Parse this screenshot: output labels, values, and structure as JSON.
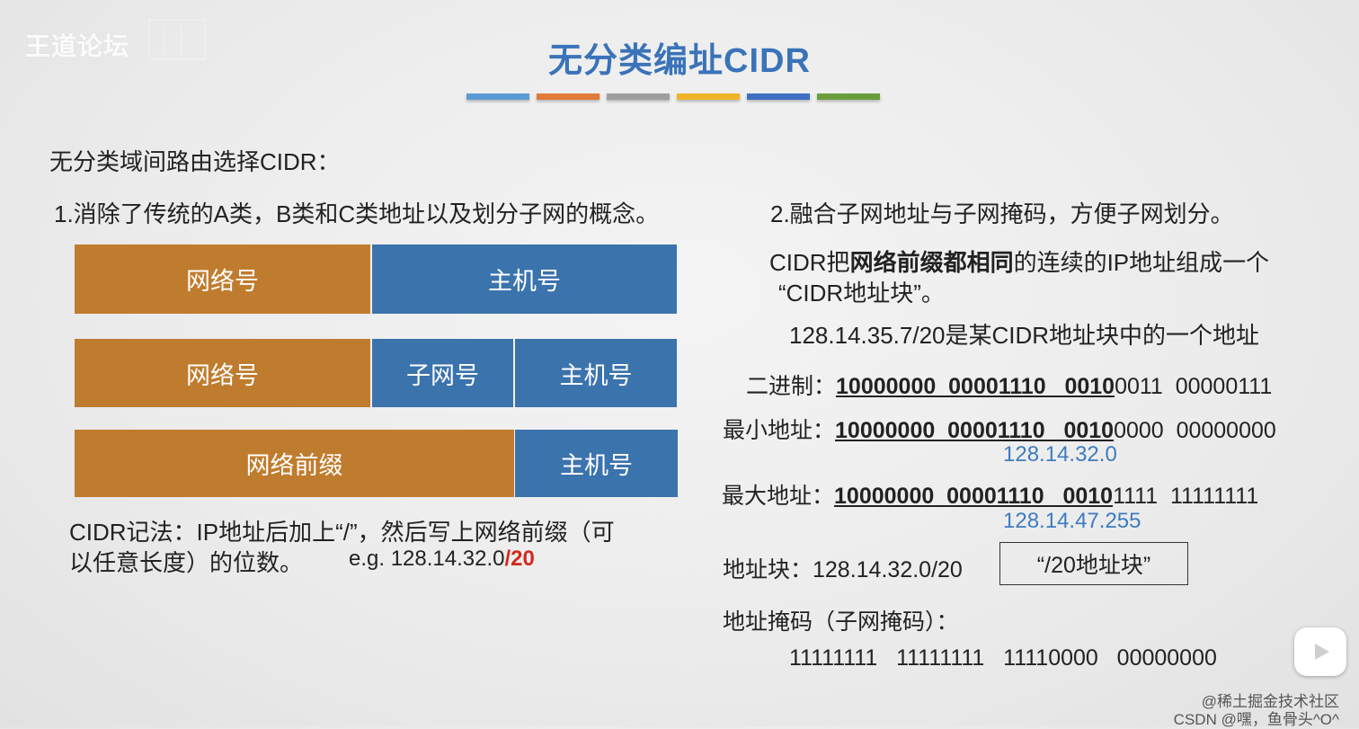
{
  "watermark": {
    "text": "王道论坛"
  },
  "slide": {
    "title": "无分类编址CIDR",
    "title_bar_colors": [
      "#5b9bd5",
      "#e07b39",
      "#9e9e9e",
      "#f0b429",
      "#3f6fc2",
      "#6a9e3c"
    ],
    "intro": "无分类域间路由选择CIDR：",
    "point1": "1.消除了传统的A类，B类和C类地址以及划分子网的概念。",
    "diagram": {
      "row1": {
        "network": "网络号",
        "host": "主机号"
      },
      "row2": {
        "network": "网络号",
        "subnet": "子网号",
        "host": "主机号"
      },
      "row3": {
        "prefix": "网络前缀",
        "host": "主机号"
      }
    },
    "notation_line1": "CIDR记法：IP地址后加上“/”，然后写上网络前缀（可",
    "notation_line2": "以任意长度）的位数。",
    "example_prefix": "e.g. 128.14.32.0",
    "example_suffix": "/20",
    "point2": "2.融合子网地址与子网掩码，方便子网划分。",
    "cidr_desc_a": "CIDR把",
    "cidr_desc_bold": "网络前缀都相同",
    "cidr_desc_b": "的连续的IP地址组成一个",
    "cidr_desc_line2": "“CIDR地址块”。",
    "example_addr": "128.14.35.7/20是某CIDR地址块中的一个地址",
    "binary": {
      "label": "二进制：",
      "prefix": "10000000  00001110   0010",
      "rest": "0011  00000111"
    },
    "min": {
      "label": "最小地址：",
      "prefix": "10000000  00001110   0010",
      "rest": "0000  00000000",
      "ip": "128.14.32.0"
    },
    "max": {
      "label": "最大地址：",
      "prefix": "10000000  00001110   0010",
      "rest": "1111  11111111",
      "ip": "128.14.47.255"
    },
    "block_label": "地址块：128.14.32.0/20",
    "block_name": "“/20地址块”",
    "mask_label": "地址掩码（子网掩码）：",
    "mask_value": "11111111   11111111   11110000   00000000"
  },
  "corner": {
    "line1": "@稀土掘金技术社区",
    "line2": "CSDN @嘿，鱼骨头^O^"
  },
  "icons": {
    "play": "play-icon"
  }
}
